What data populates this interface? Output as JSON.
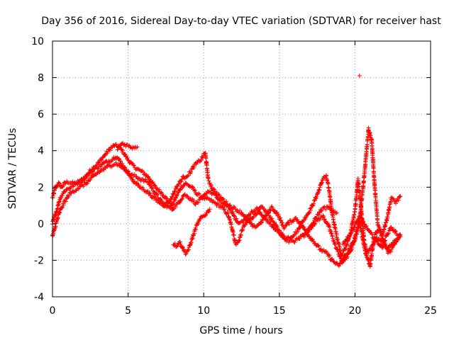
{
  "chart_data": {
    "type": "scatter",
    "title": "Day 356 of 2016, Sidereal Day-to-day VTEC variation (SDTVAR) for receiver hast",
    "xlabel": "GPS time / hours",
    "ylabel": "SDTVAR / TECUs",
    "xlim": [
      0,
      25
    ],
    "ylim": [
      -4,
      10
    ],
    "xticks": [
      0,
      5,
      10,
      15,
      20,
      25
    ],
    "yticks": [
      -4,
      -2,
      0,
      2,
      4,
      6,
      8,
      10
    ],
    "grid": true,
    "marker": "+",
    "color": "#ff0000",
    "series": [
      {
        "name": "SDTVAR",
        "traces": [
          [
            [
              0.0,
              1.4
            ],
            [
              0.1,
              1.7
            ],
            [
              0.2,
              2.0
            ],
            [
              0.4,
              2.2
            ],
            [
              0.6,
              2.0
            ],
            [
              0.8,
              2.2
            ],
            [
              1.0,
              2.3
            ],
            [
              1.4,
              2.2
            ],
            [
              1.8,
              2.3
            ],
            [
              2.2,
              2.6
            ],
            [
              2.6,
              3.0
            ],
            [
              3.0,
              3.3
            ],
            [
              3.4,
              3.7
            ],
            [
              3.8,
              4.1
            ],
            [
              4.1,
              4.3
            ],
            [
              4.4,
              4.2
            ],
            [
              4.7,
              3.9
            ],
            [
              5.0,
              3.5
            ],
            [
              5.3,
              3.2
            ],
            [
              5.6,
              3.0
            ],
            [
              6.0,
              2.8
            ],
            [
              6.4,
              2.5
            ],
            [
              6.8,
              2.0
            ],
            [
              7.2,
              1.7
            ],
            [
              7.6,
              1.3
            ],
            [
              7.9,
              1.0
            ],
            [
              8.2,
              1.5
            ],
            [
              8.5,
              2.0
            ],
            [
              8.8,
              2.2
            ],
            [
              9.2,
              2.0
            ],
            [
              9.6,
              1.6
            ],
            [
              10.0,
              1.4
            ],
            [
              10.4,
              1.3
            ],
            [
              10.8,
              1.1
            ],
            [
              11.2,
              0.9
            ],
            [
              11.6,
              0.5
            ],
            [
              11.9,
              -0.3
            ],
            [
              12.1,
              -1.1
            ],
            [
              12.3,
              -1.0
            ],
            [
              12.6,
              -0.2
            ],
            [
              13.0,
              0.2
            ],
            [
              13.4,
              0.5
            ],
            [
              13.8,
              0.9
            ],
            [
              14.2,
              0.6
            ],
            [
              14.6,
              0.1
            ],
            [
              15.0,
              -0.4
            ],
            [
              15.4,
              -0.8
            ],
            [
              15.8,
              -0.7
            ],
            [
              16.2,
              -0.4
            ],
            [
              16.6,
              0.2
            ],
            [
              17.0,
              0.7
            ],
            [
              17.3,
              1.2
            ],
            [
              17.6,
              1.8
            ],
            [
              17.9,
              2.5
            ],
            [
              18.1,
              2.6
            ],
            [
              18.3,
              1.8
            ],
            [
              18.5,
              0.5
            ],
            [
              18.8,
              -0.7
            ],
            [
              19.1,
              -1.7
            ],
            [
              19.4,
              -1.3
            ],
            [
              19.7,
              -0.5
            ],
            [
              20.0,
              0.7
            ],
            [
              20.2,
              2.4
            ],
            [
              20.4,
              0.9
            ],
            [
              20.6,
              -0.9
            ],
            [
              20.8,
              -1.6
            ],
            [
              21.1,
              -1.3
            ],
            [
              21.4,
              -0.8
            ],
            [
              21.8,
              -1.0
            ],
            [
              22.2,
              -1.3
            ],
            [
              22.6,
              -1.0
            ],
            [
              23.0,
              -0.6
            ]
          ],
          [
            [
              0.0,
              0.0
            ],
            [
              0.1,
              0.3
            ],
            [
              0.3,
              0.8
            ],
            [
              0.5,
              1.4
            ],
            [
              0.8,
              1.8
            ],
            [
              1.2,
              2.0
            ],
            [
              1.6,
              2.2
            ],
            [
              2.0,
              2.4
            ],
            [
              2.4,
              2.7
            ],
            [
              2.8,
              3.0
            ],
            [
              3.2,
              3.2
            ],
            [
              3.6,
              3.4
            ],
            [
              3.9,
              3.5
            ],
            [
              4.2,
              3.7
            ],
            [
              4.5,
              3.4
            ],
            [
              4.8,
              3.0
            ],
            [
              5.1,
              2.7
            ],
            [
              5.5,
              2.6
            ],
            [
              5.9,
              2.4
            ],
            [
              6.3,
              2.3
            ],
            [
              6.7,
              1.8
            ],
            [
              7.1,
              1.3
            ],
            [
              7.5,
              1.0
            ],
            [
              7.9,
              0.8
            ],
            [
              8.3,
              1.1
            ],
            [
              8.7,
              1.6
            ],
            [
              9.1,
              1.4
            ],
            [
              9.5,
              1.1
            ],
            [
              9.9,
              1.4
            ],
            [
              10.3,
              1.8
            ],
            [
              10.7,
              1.6
            ],
            [
              11.1,
              1.2
            ],
            [
              11.5,
              1.0
            ],
            [
              11.9,
              0.6
            ],
            [
              12.3,
              0.0
            ],
            [
              12.7,
              0.2
            ],
            [
              13.1,
              0.6
            ],
            [
              13.5,
              0.8
            ],
            [
              13.9,
              0.4
            ],
            [
              14.3,
              0.1
            ],
            [
              14.7,
              -0.3
            ],
            [
              15.1,
              -0.6
            ],
            [
              15.5,
              -0.9
            ],
            [
              15.9,
              -1.0
            ],
            [
              16.3,
              -0.8
            ],
            [
              16.7,
              -0.5
            ],
            [
              17.1,
              -0.2
            ],
            [
              17.5,
              0.2
            ],
            [
              17.9,
              0.4
            ],
            [
              18.3,
              -0.2
            ],
            [
              18.7,
              -1.2
            ],
            [
              19.1,
              -2.0
            ],
            [
              19.5,
              -1.6
            ],
            [
              19.9,
              -1.0
            ],
            [
              20.3,
              0.2
            ],
            [
              20.6,
              2.5
            ],
            [
              20.9,
              5.2
            ],
            [
              21.1,
              4.6
            ],
            [
              21.3,
              2.1
            ],
            [
              21.5,
              0.0
            ],
            [
              21.8,
              -0.6
            ],
            [
              22.1,
              0.2
            ],
            [
              22.4,
              1.4
            ],
            [
              22.7,
              1.2
            ],
            [
              23.0,
              1.5
            ]
          ],
          [
            [
              0.0,
              -0.7
            ],
            [
              0.1,
              -0.4
            ],
            [
              0.3,
              0.2
            ],
            [
              0.5,
              0.7
            ],
            [
              0.8,
              1.2
            ],
            [
              1.1,
              1.6
            ],
            [
              1.4,
              1.8
            ],
            [
              1.8,
              2.0
            ],
            [
              2.2,
              2.2
            ],
            [
              2.6,
              2.5
            ],
            [
              3.0,
              2.8
            ],
            [
              3.4,
              3.0
            ],
            [
              3.8,
              3.2
            ],
            [
              4.2,
              3.3
            ],
            [
              4.6,
              3.1
            ],
            [
              5.0,
              2.8
            ],
            [
              5.4,
              2.3
            ],
            [
              5.8,
              2.0
            ],
            [
              6.2,
              1.8
            ],
            [
              6.6,
              1.5
            ],
            [
              7.0,
              1.2
            ],
            [
              7.4,
              1.0
            ],
            [
              7.8,
              1.3
            ],
            [
              8.2,
              2.0
            ],
            [
              8.6,
              2.5
            ],
            [
              9.0,
              2.7
            ],
            [
              9.4,
              3.2
            ],
            [
              9.8,
              3.5
            ],
            [
              10.1,
              3.9
            ],
            [
              10.3,
              2.4
            ],
            [
              10.6,
              1.9
            ],
            [
              10.9,
              1.6
            ],
            [
              11.3,
              1.3
            ],
            [
              11.7,
              1.0
            ],
            [
              12.1,
              0.8
            ],
            [
              12.5,
              0.6
            ],
            [
              12.9,
              0.2
            ],
            [
              13.3,
              -0.2
            ],
            [
              13.7,
              0.0
            ],
            [
              14.1,
              0.4
            ],
            [
              14.5,
              0.9
            ],
            [
              14.9,
              0.5
            ],
            [
              15.3,
              -0.2
            ],
            [
              15.7,
              0.1
            ],
            [
              16.1,
              0.3
            ],
            [
              16.5,
              -0.1
            ],
            [
              16.9,
              -0.6
            ],
            [
              17.3,
              -1.0
            ],
            [
              17.7,
              -1.4
            ],
            [
              18.1,
              -1.6
            ],
            [
              18.5,
              -2.0
            ],
            [
              18.9,
              -2.3
            ],
            [
              19.3,
              -2.0
            ],
            [
              19.7,
              -1.5
            ],
            [
              20.0,
              -0.9
            ],
            [
              20.3,
              0.1
            ],
            [
              20.7,
              -1.6
            ],
            [
              21.0,
              -2.3
            ],
            [
              21.3,
              -0.6
            ],
            [
              21.6,
              -0.3
            ],
            [
              21.9,
              -0.9
            ],
            [
              22.2,
              -1.6
            ],
            [
              22.5,
              -1.3
            ],
            [
              22.8,
              -0.9
            ],
            [
              23.0,
              -0.7
            ]
          ],
          [
            [
              4.3,
              4.1
            ],
            [
              4.6,
              4.4
            ],
            [
              4.9,
              4.3
            ],
            [
              5.2,
              4.2
            ],
            [
              5.6,
              4.2
            ]
          ],
          [
            [
              8.0,
              -1.1
            ],
            [
              8.2,
              -1.2
            ],
            [
              8.4,
              -1.0
            ],
            [
              8.6,
              -1.3
            ],
            [
              8.8,
              -1.6
            ],
            [
              9.0,
              -1.4
            ],
            [
              9.2,
              -0.9
            ],
            [
              9.4,
              -0.4
            ],
            [
              9.6,
              0.0
            ],
            [
              9.8,
              0.3
            ],
            [
              10.1,
              0.5
            ],
            [
              10.4,
              0.8
            ]
          ],
          [
            [
              19.2,
              -1.1
            ],
            [
              19.5,
              -0.8
            ],
            [
              19.8,
              -0.4
            ],
            [
              20.0,
              -0.1
            ],
            [
              20.3,
              0.4
            ],
            [
              20.6,
              0.0
            ],
            [
              21.0,
              -0.5
            ],
            [
              21.4,
              -0.9
            ],
            [
              21.8,
              -1.3
            ],
            [
              22.1,
              -0.6
            ],
            [
              22.4,
              -0.2
            ],
            [
              22.7,
              -0.5
            ],
            [
              23.0,
              -0.7
            ]
          ],
          [
            [
              16.6,
              -0.7
            ],
            [
              17.0,
              -0.3
            ],
            [
              17.4,
              0.3
            ],
            [
              17.8,
              0.8
            ],
            [
              18.2,
              0.9
            ],
            [
              18.5,
              0.7
            ],
            [
              18.8,
              0.6
            ]
          ],
          [
            [
              20.3,
              8.1
            ]
          ]
        ]
      }
    ]
  }
}
